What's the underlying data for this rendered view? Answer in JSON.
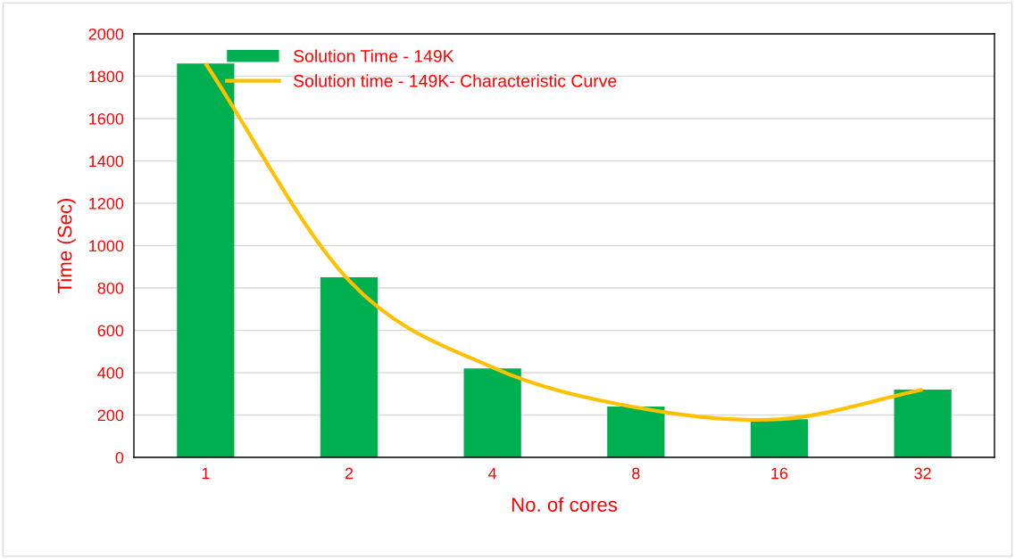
{
  "chart_data": {
    "type": "bar",
    "xlabel": "No. of cores",
    "ylabel": "Time (Sec)",
    "categories": [
      "1",
      "2",
      "4",
      "8",
      "16",
      "32"
    ],
    "series": [
      {
        "name": "Solution Time - 149K",
        "color": "#00b050",
        "values": [
          1860,
          850,
          420,
          240,
          180,
          320
        ]
      },
      {
        "name": "Solution time - 149K- Characteristic Curve",
        "type": "line",
        "color": "#ffc000",
        "values": [
          1860,
          835,
          425,
          236,
          180,
          320
        ]
      }
    ],
    "ylim": [
      0,
      2000
    ],
    "yticks": [
      0,
      200,
      400,
      600,
      800,
      1000,
      1200,
      1400,
      1600,
      1800,
      2000
    ],
    "grid": "y",
    "legend": "top left",
    "marker": "none",
    "line_style": "solid"
  }
}
